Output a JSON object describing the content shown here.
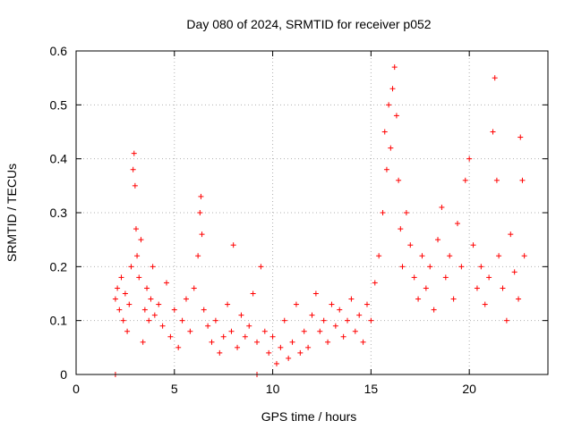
{
  "chart_data": {
    "type": "scatter",
    "title": "Day 080 of 2024, SRMTID for receiver p052",
    "xlabel": "GPS time / hours",
    "ylabel": "SRMTID / TECUs",
    "xlim": [
      0,
      24
    ],
    "ylim": [
      0,
      0.6
    ],
    "xticks": [
      0,
      5,
      10,
      15,
      20
    ],
    "xtick_labels": [
      "0",
      "5",
      "10",
      "15",
      "20"
    ],
    "yticks": [
      0,
      0.1,
      0.2,
      0.3,
      0.4,
      0.5,
      0.6
    ],
    "ytick_labels": [
      "0",
      "0.1",
      "0.2",
      "0.3",
      "0.4",
      "0.5",
      "0.6"
    ],
    "grid": true,
    "marker": "+",
    "color": "#ff0000",
    "series": [
      {
        "name": "SRMTID",
        "points": [
          [
            2.0,
            0.0
          ],
          [
            9.2,
            0.0
          ],
          [
            2.0,
            0.14
          ],
          [
            2.1,
            0.16
          ],
          [
            2.2,
            0.12
          ],
          [
            2.3,
            0.18
          ],
          [
            2.4,
            0.1
          ],
          [
            2.5,
            0.15
          ],
          [
            2.6,
            0.08
          ],
          [
            2.7,
            0.13
          ],
          [
            2.8,
            0.2
          ],
          [
            2.9,
            0.38
          ],
          [
            2.95,
            0.41
          ],
          [
            3.0,
            0.35
          ],
          [
            3.05,
            0.27
          ],
          [
            3.1,
            0.22
          ],
          [
            3.2,
            0.18
          ],
          [
            3.3,
            0.25
          ],
          [
            3.4,
            0.06
          ],
          [
            3.5,
            0.12
          ],
          [
            3.6,
            0.16
          ],
          [
            3.7,
            0.1
          ],
          [
            3.8,
            0.14
          ],
          [
            3.9,
            0.2
          ],
          [
            4.0,
            0.11
          ],
          [
            4.2,
            0.13
          ],
          [
            4.4,
            0.09
          ],
          [
            4.6,
            0.17
          ],
          [
            4.8,
            0.07
          ],
          [
            5.0,
            0.12
          ],
          [
            5.2,
            0.05
          ],
          [
            5.4,
            0.1
          ],
          [
            5.6,
            0.14
          ],
          [
            5.8,
            0.08
          ],
          [
            6.0,
            0.16
          ],
          [
            6.2,
            0.22
          ],
          [
            6.3,
            0.3
          ],
          [
            6.35,
            0.33
          ],
          [
            6.4,
            0.26
          ],
          [
            6.5,
            0.12
          ],
          [
            6.7,
            0.09
          ],
          [
            6.9,
            0.06
          ],
          [
            7.1,
            0.1
          ],
          [
            7.3,
            0.04
          ],
          [
            7.5,
            0.07
          ],
          [
            7.7,
            0.13
          ],
          [
            7.9,
            0.08
          ],
          [
            8.0,
            0.24
          ],
          [
            8.2,
            0.05
          ],
          [
            8.4,
            0.11
          ],
          [
            8.6,
            0.07
          ],
          [
            8.8,
            0.09
          ],
          [
            9.0,
            0.15
          ],
          [
            9.2,
            0.06
          ],
          [
            9.4,
            0.2
          ],
          [
            9.6,
            0.08
          ],
          [
            9.8,
            0.04
          ],
          [
            10.0,
            0.07
          ],
          [
            10.2,
            0.02
          ],
          [
            10.4,
            0.05
          ],
          [
            10.6,
            0.1
          ],
          [
            10.8,
            0.03
          ],
          [
            11.0,
            0.06
          ],
          [
            11.2,
            0.13
          ],
          [
            11.4,
            0.04
          ],
          [
            11.6,
            0.08
          ],
          [
            11.8,
            0.05
          ],
          [
            12.0,
            0.11
          ],
          [
            12.2,
            0.15
          ],
          [
            12.4,
            0.08
          ],
          [
            12.6,
            0.1
          ],
          [
            12.8,
            0.06
          ],
          [
            13.0,
            0.13
          ],
          [
            13.2,
            0.09
          ],
          [
            13.4,
            0.12
          ],
          [
            13.6,
            0.07
          ],
          [
            13.8,
            0.1
          ],
          [
            14.0,
            0.14
          ],
          [
            14.2,
            0.08
          ],
          [
            14.4,
            0.11
          ],
          [
            14.6,
            0.06
          ],
          [
            14.8,
            0.13
          ],
          [
            15.0,
            0.1
          ],
          [
            15.2,
            0.17
          ],
          [
            15.4,
            0.22
          ],
          [
            15.6,
            0.3
          ],
          [
            15.7,
            0.45
          ],
          [
            15.8,
            0.38
          ],
          [
            15.9,
            0.5
          ],
          [
            16.0,
            0.42
          ],
          [
            16.1,
            0.53
          ],
          [
            16.2,
            0.57
          ],
          [
            16.3,
            0.48
          ],
          [
            16.4,
            0.36
          ],
          [
            16.5,
            0.27
          ],
          [
            16.6,
            0.2
          ],
          [
            16.8,
            0.3
          ],
          [
            17.0,
            0.24
          ],
          [
            17.2,
            0.18
          ],
          [
            17.4,
            0.14
          ],
          [
            17.6,
            0.22
          ],
          [
            17.8,
            0.16
          ],
          [
            18.0,
            0.2
          ],
          [
            18.2,
            0.12
          ],
          [
            18.4,
            0.25
          ],
          [
            18.6,
            0.31
          ],
          [
            18.8,
            0.18
          ],
          [
            19.0,
            0.22
          ],
          [
            19.2,
            0.14
          ],
          [
            19.4,
            0.28
          ],
          [
            19.6,
            0.2
          ],
          [
            19.8,
            0.36
          ],
          [
            20.0,
            0.4
          ],
          [
            20.2,
            0.24
          ],
          [
            20.4,
            0.16
          ],
          [
            20.6,
            0.2
          ],
          [
            20.8,
            0.13
          ],
          [
            21.0,
            0.18
          ],
          [
            21.2,
            0.45
          ],
          [
            21.3,
            0.55
          ],
          [
            21.4,
            0.36
          ],
          [
            21.5,
            0.22
          ],
          [
            21.7,
            0.16
          ],
          [
            21.9,
            0.1
          ],
          [
            22.1,
            0.26
          ],
          [
            22.3,
            0.19
          ],
          [
            22.5,
            0.14
          ],
          [
            22.6,
            0.44
          ],
          [
            22.7,
            0.36
          ],
          [
            22.8,
            0.22
          ]
        ]
      }
    ]
  }
}
